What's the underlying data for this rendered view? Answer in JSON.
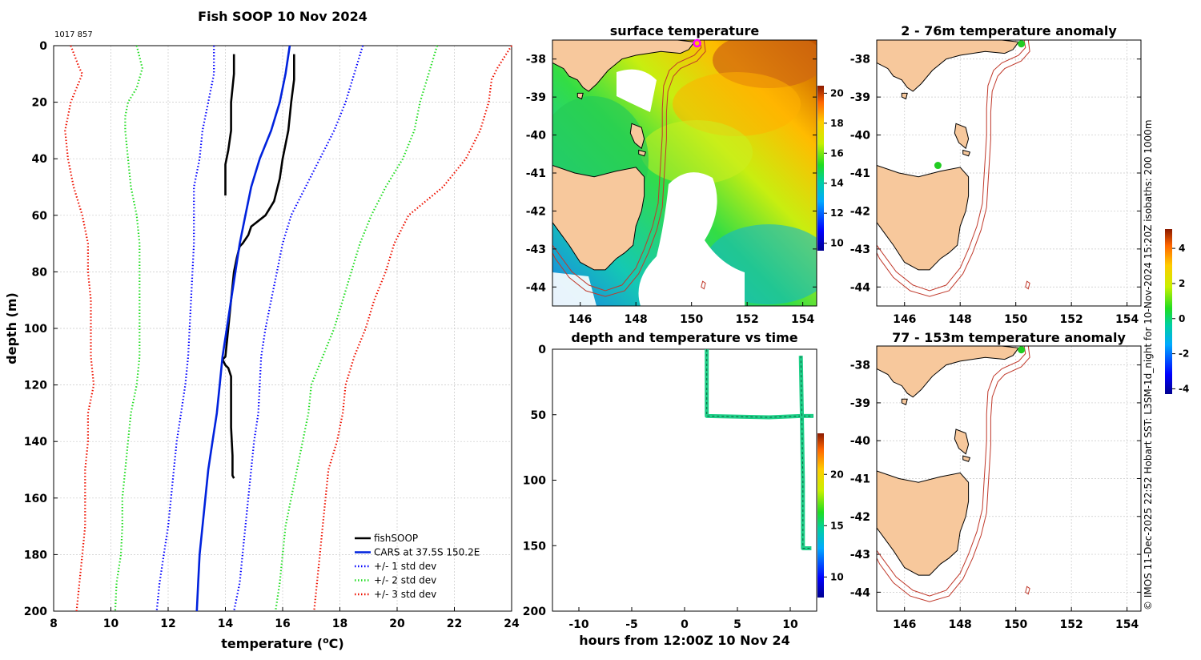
{
  "colors": {
    "fishsoop": "#000000",
    "cars": "#0022dd",
    "std1": "#0000ff",
    "std2": "#22dd22",
    "std3": "#ee1100",
    "land": "#f7c89c",
    "isobath": "#c0392b",
    "ship_marker": "#ff00ff",
    "probe_point": "#22cc22",
    "grid": "#c8c8c8"
  },
  "credit": "© IMOS 11-Dec-2025 22:52 Hobart SST: L3SM-1d_night for 10-Nov-2024 15:20Z isobaths: 200  1000m",
  "chart_data": [
    {
      "id": "profile",
      "type": "line",
      "title": "Fish SOOP 10 Nov 2024",
      "subtitle": "1017 857",
      "xlabel": "temperature (°C)",
      "xlabel_main": "temperature (",
      "xlabel_sup": "o",
      "xlabel_end": "C)",
      "ylabel": "depth (m)",
      "xlim": [
        8,
        24
      ],
      "ylim": [
        0,
        200
      ],
      "y_reversed": true,
      "xticks": [
        8,
        10,
        12,
        14,
        16,
        18,
        20,
        22,
        24
      ],
      "yticks": [
        0,
        20,
        40,
        60,
        80,
        100,
        120,
        140,
        160,
        180,
        200
      ],
      "grid": true,
      "legend_position": "bottom-right",
      "series": [
        {
          "name": "fishSOOP",
          "style": "solid",
          "color_key": "fishsoop",
          "points": [
            [
              14.3,
              3
            ],
            [
              14.3,
              10
            ],
            [
              14.2,
              20
            ],
            [
              14.2,
              30
            ],
            [
              14.1,
              37
            ],
            [
              14.0,
              42
            ],
            [
              14.0,
              50
            ],
            [
              14.0,
              53
            ]
          ]
        },
        {
          "name": "fishSOOP-2",
          "legend": false,
          "style": "solid",
          "color_key": "fishsoop",
          "points": [
            [
              16.4,
              3
            ],
            [
              16.4,
              12
            ],
            [
              16.3,
              20
            ],
            [
              16.2,
              30
            ],
            [
              16.0,
              40
            ],
            [
              15.9,
              47
            ],
            [
              15.7,
              55
            ],
            [
              15.4,
              60
            ],
            [
              14.9,
              64
            ],
            [
              14.8,
              67
            ],
            [
              14.6,
              70
            ],
            [
              14.5,
              71
            ],
            [
              14.4,
              75
            ],
            [
              14.3,
              80
            ],
            [
              14.2,
              90
            ],
            [
              14.1,
              100
            ],
            [
              14.0,
              110
            ],
            [
              13.9,
              111
            ],
            [
              14.0,
              113
            ],
            [
              14.1,
              114
            ],
            [
              14.2,
              117
            ],
            [
              14.2,
              125
            ],
            [
              14.2,
              135
            ],
            [
              14.25,
              145
            ],
            [
              14.25,
              152
            ],
            [
              14.3,
              153
            ]
          ]
        },
        {
          "name": "CARS at 37.5S 150.2E",
          "style": "solid",
          "color_key": "cars",
          "points": [
            [
              16.25,
              0
            ],
            [
              16.1,
              10
            ],
            [
              15.9,
              20
            ],
            [
              15.6,
              30
            ],
            [
              15.2,
              40
            ],
            [
              14.9,
              50
            ],
            [
              14.7,
              60
            ],
            [
              14.5,
              70
            ],
            [
              14.35,
              80
            ],
            [
              14.2,
              90
            ],
            [
              14.05,
              100
            ],
            [
              13.9,
              110
            ],
            [
              13.8,
              120
            ],
            [
              13.7,
              130
            ],
            [
              13.55,
              140
            ],
            [
              13.4,
              150
            ],
            [
              13.3,
              160
            ],
            [
              13.2,
              170
            ],
            [
              13.1,
              180
            ],
            [
              13.05,
              190
            ],
            [
              13.0,
              200
            ]
          ]
        },
        {
          "name": "+/- 1 std dev",
          "style": "dotted",
          "color_key": "std1",
          "points": [
            [
              13.6,
              0
            ],
            [
              13.6,
              10
            ],
            [
              13.4,
              20
            ],
            [
              13.2,
              30
            ],
            [
              13.1,
              40
            ],
            [
              12.9,
              50
            ],
            [
              12.9,
              60
            ],
            [
              12.9,
              70
            ],
            [
              12.85,
              80
            ],
            [
              12.8,
              90
            ],
            [
              12.75,
              100
            ],
            [
              12.7,
              110
            ],
            [
              12.6,
              120
            ],
            [
              12.45,
              130
            ],
            [
              12.3,
              140
            ],
            [
              12.2,
              150
            ],
            [
              12.1,
              160
            ],
            [
              12.0,
              170
            ],
            [
              11.85,
              180
            ],
            [
              11.7,
              190
            ],
            [
              11.6,
              200
            ]
          ]
        },
        {
          "name": "+/- 1 std dev upper",
          "legend": false,
          "style": "dotted",
          "color_key": "std1",
          "points": [
            [
              18.8,
              0
            ],
            [
              18.5,
              10
            ],
            [
              18.2,
              20
            ],
            [
              17.8,
              30
            ],
            [
              17.3,
              40
            ],
            [
              16.8,
              50
            ],
            [
              16.3,
              60
            ],
            [
              16.0,
              70
            ],
            [
              15.8,
              80
            ],
            [
              15.6,
              90
            ],
            [
              15.4,
              100
            ],
            [
              15.25,
              110
            ],
            [
              15.2,
              120
            ],
            [
              15.15,
              130
            ],
            [
              15.0,
              140
            ],
            [
              14.9,
              150
            ],
            [
              14.8,
              160
            ],
            [
              14.7,
              170
            ],
            [
              14.6,
              180
            ],
            [
              14.5,
              190
            ],
            [
              14.3,
              200
            ]
          ]
        },
        {
          "name": "+/- 2 std dev",
          "style": "dotted",
          "color_key": "std2",
          "points": [
            [
              10.9,
              0
            ],
            [
              11.1,
              8
            ],
            [
              10.9,
              15
            ],
            [
              10.6,
              20
            ],
            [
              10.5,
              25
            ],
            [
              10.5,
              30
            ],
            [
              10.6,
              40
            ],
            [
              10.7,
              50
            ],
            [
              10.9,
              60
            ],
            [
              11.0,
              70
            ],
            [
              11.0,
              80
            ],
            [
              11.0,
              90
            ],
            [
              11.0,
              100
            ],
            [
              11.0,
              110
            ],
            [
              10.9,
              120
            ],
            [
              10.7,
              130
            ],
            [
              10.6,
              140
            ],
            [
              10.5,
              150
            ],
            [
              10.4,
              160
            ],
            [
              10.4,
              170
            ],
            [
              10.35,
              180
            ],
            [
              10.2,
              190
            ],
            [
              10.15,
              200
            ]
          ]
        },
        {
          "name": "+/- 2 std dev upper",
          "legend": false,
          "style": "dotted",
          "color_key": "std2",
          "points": [
            [
              21.4,
              0
            ],
            [
              21.1,
              10
            ],
            [
              20.8,
              20
            ],
            [
              20.6,
              30
            ],
            [
              20.2,
              40
            ],
            [
              19.6,
              50
            ],
            [
              19.1,
              60
            ],
            [
              18.7,
              70
            ],
            [
              18.4,
              80
            ],
            [
              18.1,
              90
            ],
            [
              17.8,
              100
            ],
            [
              17.4,
              110
            ],
            [
              17.0,
              120
            ],
            [
              16.9,
              130
            ],
            [
              16.7,
              140
            ],
            [
              16.5,
              150
            ],
            [
              16.3,
              160
            ],
            [
              16.1,
              170
            ],
            [
              16.0,
              180
            ],
            [
              15.9,
              190
            ],
            [
              15.75,
              200
            ]
          ]
        },
        {
          "name": "+/- 3 std dev",
          "style": "dotted",
          "color_key": "std3",
          "points": [
            [
              8.6,
              0
            ],
            [
              8.9,
              8
            ],
            [
              9.0,
              10
            ],
            [
              8.8,
              15
            ],
            [
              8.6,
              20
            ],
            [
              8.4,
              30
            ],
            [
              8.5,
              40
            ],
            [
              8.7,
              50
            ],
            [
              9.0,
              60
            ],
            [
              9.2,
              70
            ],
            [
              9.2,
              80
            ],
            [
              9.3,
              90
            ],
            [
              9.3,
              100
            ],
            [
              9.3,
              110
            ],
            [
              9.4,
              120
            ],
            [
              9.2,
              130
            ],
            [
              9.2,
              140
            ],
            [
              9.1,
              150
            ],
            [
              9.1,
              160
            ],
            [
              9.1,
              170
            ],
            [
              9.0,
              180
            ],
            [
              8.9,
              190
            ],
            [
              8.8,
              200
            ]
          ]
        },
        {
          "name": "+/- 3 std dev upper",
          "legend": false,
          "style": "dotted",
          "color_key": "std3",
          "points": [
            [
              24.0,
              0
            ],
            [
              23.5,
              8
            ],
            [
              23.3,
              12
            ],
            [
              23.2,
              20
            ],
            [
              22.9,
              30
            ],
            [
              22.4,
              40
            ],
            [
              21.6,
              50
            ],
            [
              20.4,
              60
            ],
            [
              19.9,
              70
            ],
            [
              19.6,
              80
            ],
            [
              19.2,
              90
            ],
            [
              18.9,
              100
            ],
            [
              18.5,
              110
            ],
            [
              18.2,
              120
            ],
            [
              18.1,
              130
            ],
            [
              17.9,
              140
            ],
            [
              17.6,
              150
            ],
            [
              17.5,
              160
            ],
            [
              17.4,
              170
            ],
            [
              17.3,
              180
            ],
            [
              17.2,
              190
            ],
            [
              17.1,
              200
            ]
          ]
        }
      ]
    },
    {
      "id": "sst-map",
      "type": "heatmap",
      "title": "surface temperature",
      "xlim": [
        145,
        154.5
      ],
      "ylim": [
        -44.5,
        -37.5
      ],
      "xticks": [
        146,
        148,
        150,
        152,
        154
      ],
      "yticks": [
        -38,
        -39,
        -40,
        -41,
        -42,
        -43,
        -44
      ],
      "colorbar_range": [
        9.5,
        20.5
      ],
      "colorbar_ticks": [
        10,
        12,
        14,
        16,
        18,
        20
      ],
      "ship_position": [
        150.2,
        -37.5
      ]
    },
    {
      "id": "depth-time",
      "type": "scatter",
      "title": "depth and temperature vs time",
      "xlabel": "hours from 12:00Z 10 Nov 24",
      "xlim": [
        -12.5,
        12.5
      ],
      "ylim": [
        0,
        200
      ],
      "y_reversed": true,
      "xticks": [
        -10,
        -5,
        0,
        5,
        10
      ],
      "yticks": [
        0,
        50,
        100,
        150,
        200
      ],
      "colorbar_range": [
        8,
        24
      ],
      "colorbar_ticks": [
        10,
        15,
        20
      ],
      "segments": [
        [
          [
            2.1,
            0
          ],
          [
            2.1,
            51
          ],
          [
            8,
            52
          ],
          [
            11,
            51
          ],
          [
            12.2,
            51
          ]
        ],
        [
          [
            11.0,
            5
          ],
          [
            11.1,
            50
          ],
          [
            11.2,
            100
          ],
          [
            11.2,
            140
          ],
          [
            11.2,
            152
          ],
          [
            12.0,
            152
          ]
        ]
      ]
    },
    {
      "id": "anom-1",
      "type": "heatmap",
      "title": "2 - 76m temperature anomaly",
      "xlim": [
        145,
        154.5
      ],
      "ylim": [
        -44.5,
        -37.5
      ],
      "xticks": [
        146,
        148,
        150,
        152,
        154
      ],
      "yticks": [
        -38,
        -39,
        -40,
        -41,
        -42,
        -43,
        -44
      ],
      "points": [
        [
          150.2,
          -37.6
        ],
        [
          147.2,
          -40.8
        ]
      ]
    },
    {
      "id": "anom-2",
      "type": "heatmap",
      "title": "77 - 153m temperature anomaly",
      "xlim": [
        145,
        154.5
      ],
      "ylim": [
        -44.5,
        -37.5
      ],
      "xticks": [
        146,
        148,
        150,
        152,
        154
      ],
      "yticks": [
        -38,
        -39,
        -40,
        -41,
        -42,
        -43,
        -44
      ],
      "points": [
        [
          150.2,
          -37.6
        ]
      ],
      "colorbar_range": [
        -4.3,
        5.1
      ],
      "colorbar_ticks": [
        4,
        2,
        0,
        -2,
        -4
      ]
    }
  ]
}
